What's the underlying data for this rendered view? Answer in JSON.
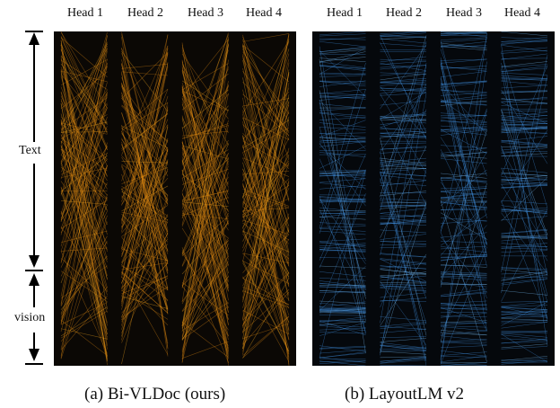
{
  "panel_a": {
    "heads": [
      "Head 1",
      "Head 2",
      "Head 3",
      "Head 4"
    ],
    "caption": "(a) Bi-VLDoc (ours)",
    "colors": {
      "bg": "#0b0805",
      "line": "#e08a12",
      "glow": "#ffb020"
    }
  },
  "panel_b": {
    "heads": [
      "Head 1",
      "Head 2",
      "Head 3",
      "Head 4"
    ],
    "caption": "(b) LayoutLM v2",
    "colors": {
      "bg": "#05080c",
      "line": "#3f8fe0",
      "glow": "#7cc4ff"
    }
  },
  "side_labels": {
    "text": "Text",
    "vision": "vision"
  }
}
